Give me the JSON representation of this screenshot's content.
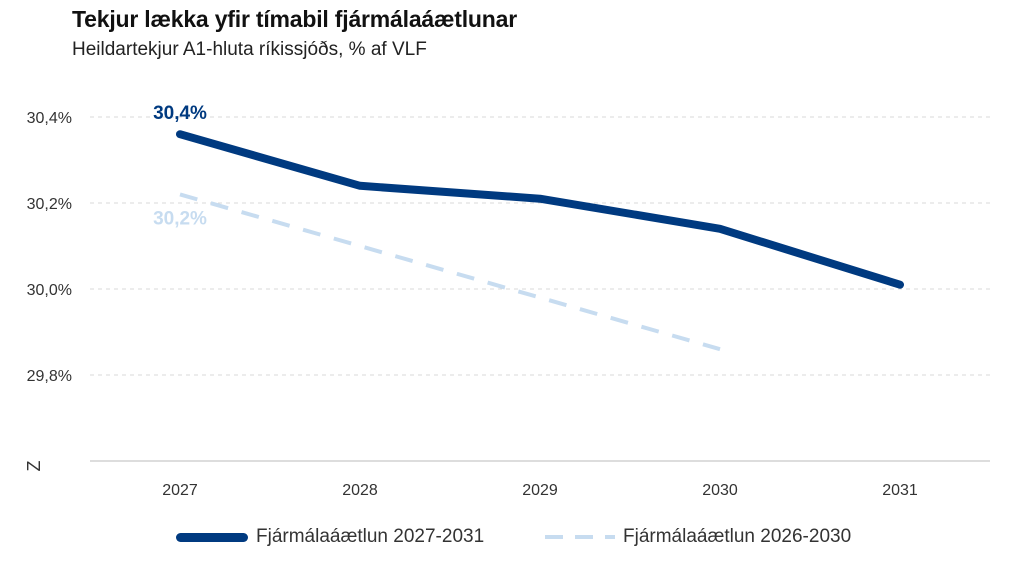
{
  "chart_data": {
    "type": "line",
    "title": "Tekjur lækka yfir tímabil fjármálaáætlunar",
    "subtitle": "Heildartekjur A1-hluta ríkissjóðs, % af VLF",
    "categories": [
      "2027",
      "2028",
      "2029",
      "2030",
      "2031"
    ],
    "y_ticks": [
      {
        "value": 30.4,
        "label": "30,4%"
      },
      {
        "value": 30.2,
        "label": "30,2%"
      },
      {
        "value": 30.0,
        "label": "30,0%"
      },
      {
        "value": 29.8,
        "label": "29,8%"
      }
    ],
    "ylim": [
      29.6,
      30.4
    ],
    "axis_break_symbol": "Z",
    "grid": true,
    "legend_position": "bottom",
    "series": [
      {
        "name": "Fjármálaáætlun 2027-2031",
        "color": "#003A80",
        "style": "solid",
        "values": [
          30.36,
          30.24,
          30.21,
          30.14,
          30.01
        ],
        "first_label": "30,4%"
      },
      {
        "name": "Fjármálaáætlun 2026-2030",
        "color": "#C7DCF0",
        "style": "dashed",
        "values": [
          30.22,
          30.1,
          29.98,
          29.86,
          null
        ],
        "first_label": "30,2%"
      }
    ]
  }
}
